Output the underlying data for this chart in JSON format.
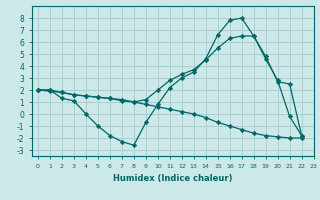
{
  "xlabel": "Humidex (Indice chaleur)",
  "background_color": "#cce8e8",
  "grid_color": "#aacfcf",
  "line_color": "#006868",
  "xlim": [
    -0.5,
    23
  ],
  "ylim": [
    -3.5,
    9.0
  ],
  "yticks": [
    -3,
    -2,
    -1,
    0,
    1,
    2,
    3,
    4,
    5,
    6,
    7,
    8
  ],
  "xticks": [
    0,
    1,
    2,
    3,
    4,
    5,
    6,
    7,
    8,
    9,
    10,
    11,
    12,
    13,
    14,
    15,
    16,
    17,
    18,
    19,
    20,
    21,
    22,
    23
  ],
  "line1_x": [
    0,
    1,
    2,
    3,
    4,
    5,
    6,
    7,
    8,
    9,
    10,
    11,
    12,
    13,
    14,
    15,
    16,
    17,
    18,
    19,
    20,
    21,
    22
  ],
  "line1_y": [
    2.0,
    1.9,
    1.8,
    1.6,
    1.5,
    1.4,
    1.3,
    1.1,
    1.0,
    0.8,
    0.6,
    0.4,
    0.2,
    0.0,
    -0.3,
    -0.7,
    -1.0,
    -1.3,
    -1.6,
    -1.8,
    -1.9,
    -2.0,
    -2.0
  ],
  "line2_x": [
    0,
    1,
    2,
    3,
    4,
    5,
    6,
    7,
    8,
    9,
    10,
    11,
    12,
    13,
    14,
    15,
    16,
    17,
    18,
    19,
    20,
    21,
    22
  ],
  "line2_y": [
    2.0,
    2.0,
    1.3,
    1.1,
    0.0,
    -1.0,
    -1.8,
    -2.3,
    -2.6,
    -0.7,
    0.8,
    2.2,
    3.0,
    3.5,
    4.6,
    6.6,
    7.8,
    8.0,
    6.5,
    4.6,
    2.8,
    -0.2,
    -1.8
  ],
  "line3_x": [
    0,
    1,
    2,
    3,
    4,
    5,
    6,
    7,
    8,
    9,
    10,
    11,
    12,
    13,
    14,
    15,
    16,
    17,
    18,
    19,
    20,
    21,
    22
  ],
  "line3_y": [
    2.0,
    2.0,
    1.8,
    1.6,
    1.5,
    1.4,
    1.3,
    1.2,
    1.0,
    1.2,
    2.0,
    2.8,
    3.3,
    3.7,
    4.5,
    5.5,
    6.3,
    6.5,
    6.5,
    4.8,
    2.7,
    2.5,
    -1.8
  ]
}
